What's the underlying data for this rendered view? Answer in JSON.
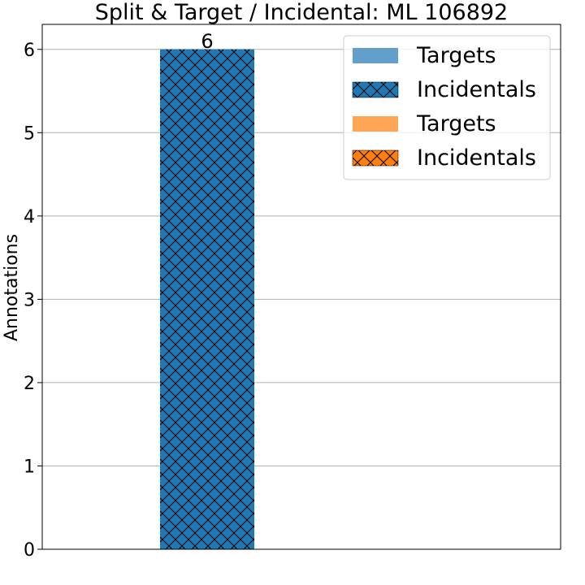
{
  "chart_data": {
    "type": "bar",
    "title": "Split & Target / Incidental: ML 106892",
    "ylabel": "Annotations",
    "xlabel": "",
    "ylim": [
      0,
      6.3
    ],
    "yticks": [
      0,
      1,
      2,
      3,
      4,
      5,
      6
    ],
    "grid": "y",
    "legend_placement": "top-right",
    "bars": [
      {
        "series": "Incidentals",
        "group": 0,
        "value": 6,
        "label": "6",
        "color": "#1f77b4",
        "hatch": "x"
      }
    ],
    "legend": [
      {
        "label": "Targets",
        "color": "#62a0cb",
        "hatch": "none"
      },
      {
        "label": "Incidentals",
        "color": "#1f77b4",
        "hatch": "x"
      },
      {
        "label": "Targets",
        "color": "#ffa556",
        "hatch": "none"
      },
      {
        "label": "Incidentals",
        "color": "#ff7f0e",
        "hatch": "x"
      }
    ]
  }
}
